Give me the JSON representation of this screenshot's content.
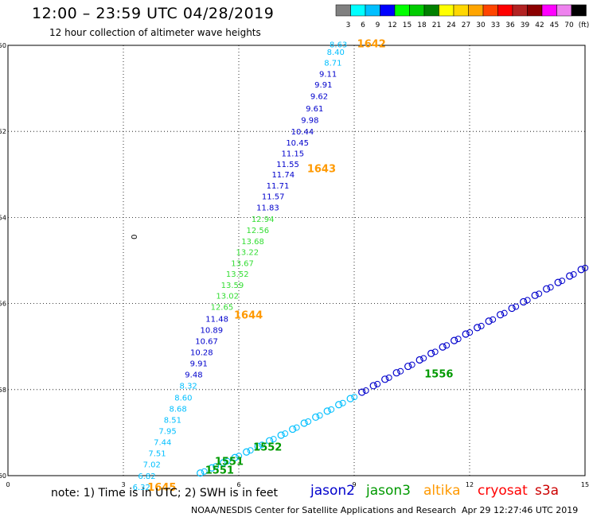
{
  "header": {
    "title": "12:00 – 23:59 UTC 04/28/2019",
    "subtitle": "12 hour collection of altimeter wave heights"
  },
  "colorbar": {
    "colors": [
      "#808080",
      "#00ffff",
      "#00bfff",
      "#0000ff",
      "#00ff00",
      "#00cc00",
      "#008000",
      "#ffff00",
      "#ffd700",
      "#ffa500",
      "#ff4500",
      "#ff0000",
      "#b22222",
      "#8b0000",
      "#ff00ff",
      "#ee82ee",
      "#000000"
    ],
    "labels": [
      "3",
      "6",
      "9",
      "12",
      "15",
      "18",
      "21",
      "24",
      "27",
      "30",
      "33",
      "36",
      "39",
      "42",
      "45",
      "70",
      "(ft)"
    ]
  },
  "note": "note: 1) Time is in UTC; 2) SWH is in feet",
  "satellites": [
    {
      "name": "jason2",
      "color": "#0000cc"
    },
    {
      "name": "jason3",
      "color": "#009900"
    },
    {
      "name": "altika",
      "color": "#ff9900"
    },
    {
      "name": "cryosat",
      "color": "#ff0000"
    },
    {
      "name": "s3a",
      "color": "#cc0000"
    }
  ],
  "footer": {
    "credit": "NOAA/NESDIS Center for Satellite Applications and Research",
    "timestamp": "Apr 29 12:27:46 UTC 2019"
  },
  "chart_data": {
    "type": "scatter",
    "title": "12:00 – 23:59 UTC 04/28/2019",
    "xlim": [
      0,
      15
    ],
    "ylim": [
      -60,
      -50
    ],
    "x_ticks": [
      0,
      3,
      6,
      9,
      12,
      15
    ],
    "y_ticks": [
      -50,
      -52,
      -54,
      -56,
      -58,
      -60
    ],
    "grid": true,
    "track_main": [
      {
        "x": 8.82,
        "y": -50.05,
        "v": "8.63"
      },
      {
        "x": 8.75,
        "y": -50.22,
        "v": "8.40"
      },
      {
        "x": 8.68,
        "y": -50.47,
        "v": "8.71"
      },
      {
        "x": 8.55,
        "y": -50.73,
        "v": "9.11"
      },
      {
        "x": 8.43,
        "y": -50.98,
        "v": "9.91"
      },
      {
        "x": 8.32,
        "y": -51.25,
        "v": "9.62"
      },
      {
        "x": 8.2,
        "y": -51.53,
        "v": "9.61"
      },
      {
        "x": 8.08,
        "y": -51.8,
        "v": "9.98"
      },
      {
        "x": 7.95,
        "y": -52.07,
        "v": "10.44"
      },
      {
        "x": 7.82,
        "y": -52.33,
        "v": "10.45"
      },
      {
        "x": 7.7,
        "y": -52.58,
        "v": "11.15"
      },
      {
        "x": 7.57,
        "y": -52.83,
        "v": "11.55"
      },
      {
        "x": 7.45,
        "y": -53.07,
        "v": "11.74"
      },
      {
        "x": 7.31,
        "y": -53.33,
        "v": "11.71"
      },
      {
        "x": 7.19,
        "y": -53.58,
        "v": "11.57"
      },
      {
        "x": 7.05,
        "y": -53.84,
        "v": "11.83"
      },
      {
        "x": 6.92,
        "y": -54.1,
        "v": "12.94"
      },
      {
        "x": 6.79,
        "y": -54.36,
        "v": "12.56"
      },
      {
        "x": 6.66,
        "y": -54.62,
        "v": "13.68"
      },
      {
        "x": 6.52,
        "y": -54.87,
        "v": "13.22"
      },
      {
        "x": 6.39,
        "y": -55.13,
        "v": "13.67"
      },
      {
        "x": 6.26,
        "y": -55.38,
        "v": "13.52"
      },
      {
        "x": 6.13,
        "y": -55.64,
        "v": "13.59"
      },
      {
        "x": 6.0,
        "y": -55.89,
        "v": "13.02"
      },
      {
        "x": 5.86,
        "y": -56.15,
        "v": "12.65"
      },
      {
        "x": 5.73,
        "y": -56.42,
        "v": "11.48"
      },
      {
        "x": 5.59,
        "y": -56.68,
        "v": "10.89"
      },
      {
        "x": 5.46,
        "y": -56.94,
        "v": "10.67"
      },
      {
        "x": 5.33,
        "y": -57.2,
        "v": "10.28"
      },
      {
        "x": 5.19,
        "y": -57.46,
        "v": "9.91"
      },
      {
        "x": 5.06,
        "y": -57.72,
        "v": "9.48"
      },
      {
        "x": 4.92,
        "y": -57.98,
        "v": "8.32"
      },
      {
        "x": 4.79,
        "y": -58.25,
        "v": "8.60"
      },
      {
        "x": 4.65,
        "y": -58.51,
        "v": "8.68"
      },
      {
        "x": 4.51,
        "y": -58.77,
        "v": "8.51"
      },
      {
        "x": 4.38,
        "y": -59.03,
        "v": "7.95"
      },
      {
        "x": 4.25,
        "y": -59.29,
        "v": "7.44"
      },
      {
        "x": 4.11,
        "y": -59.55,
        "v": "7.51"
      },
      {
        "x": 3.97,
        "y": -59.81,
        "v": "7.02"
      },
      {
        "x": 3.84,
        "y": -60.07,
        "v": "6.82"
      },
      {
        "x": 3.7,
        "y": -60.33,
        "v": "6.32"
      },
      {
        "x": 5.2,
        "y": -60.62,
        "v": "6.25"
      }
    ],
    "track_labels": [
      {
        "x": 9.45,
        "y": -50.05,
        "text": "1642"
      },
      {
        "x": 8.15,
        "y": -52.95,
        "text": "1643"
      },
      {
        "x": 6.25,
        "y": -56.35,
        "text": "1644"
      },
      {
        "x": 4.0,
        "y": -60.35,
        "text": "1645"
      },
      {
        "x": 11.2,
        "y": -57.72,
        "text": "1556",
        "sat": "jason3"
      },
      {
        "x": 6.75,
        "y": -59.42,
        "text": "1552",
        "sat": "jason3"
      },
      {
        "x": 5.75,
        "y": -59.75,
        "text": "1551",
        "sat": "jason3"
      },
      {
        "x": 5.5,
        "y": -59.95,
        "text": "1551",
        "sat": "jason3"
      }
    ],
    "track_diagonal": [
      {
        "x": 5.0,
        "y": -59.94
      },
      {
        "x": 5.3,
        "y": -59.82
      },
      {
        "x": 5.6,
        "y": -59.7
      },
      {
        "x": 5.9,
        "y": -59.58
      },
      {
        "x": 6.2,
        "y": -59.45
      },
      {
        "x": 6.5,
        "y": -59.32
      },
      {
        "x": 6.8,
        "y": -59.19
      },
      {
        "x": 7.1,
        "y": -59.06
      },
      {
        "x": 7.4,
        "y": -58.92
      },
      {
        "x": 7.7,
        "y": -58.78
      },
      {
        "x": 8.0,
        "y": -58.64
      },
      {
        "x": 8.3,
        "y": -58.5
      },
      {
        "x": 8.6,
        "y": -58.35
      },
      {
        "x": 8.9,
        "y": -58.21
      },
      {
        "x": 9.2,
        "y": -58.06
      },
      {
        "x": 9.5,
        "y": -57.91
      },
      {
        "x": 9.8,
        "y": -57.76
      },
      {
        "x": 10.1,
        "y": -57.61
      },
      {
        "x": 10.4,
        "y": -57.46
      },
      {
        "x": 10.7,
        "y": -57.31
      },
      {
        "x": 11.0,
        "y": -57.16
      },
      {
        "x": 11.3,
        "y": -57.01
      },
      {
        "x": 11.6,
        "y": -56.86
      },
      {
        "x": 11.9,
        "y": -56.71
      },
      {
        "x": 12.2,
        "y": -56.56
      },
      {
        "x": 12.5,
        "y": -56.41
      },
      {
        "x": 12.8,
        "y": -56.26
      },
      {
        "x": 13.1,
        "y": -56.11
      },
      {
        "x": 13.4,
        "y": -55.96
      },
      {
        "x": 13.7,
        "y": -55.81
      },
      {
        "x": 14.0,
        "y": -55.66
      },
      {
        "x": 14.3,
        "y": -55.51
      },
      {
        "x": 14.6,
        "y": -55.36
      },
      {
        "x": 14.9,
        "y": -55.21
      }
    ],
    "isolated_marks": [
      {
        "x": 3.35,
        "y": -54.45,
        "text": "0"
      }
    ]
  }
}
